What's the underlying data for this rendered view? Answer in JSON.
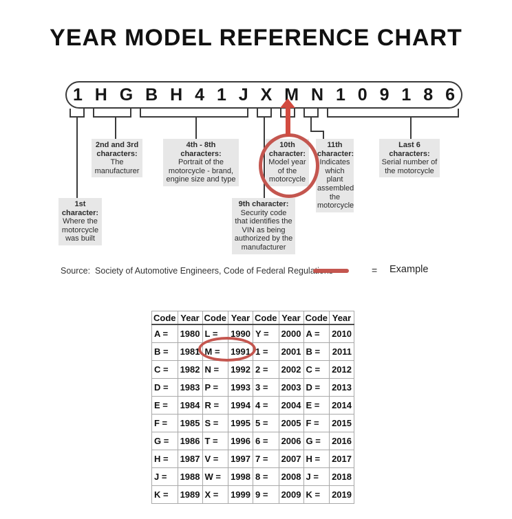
{
  "title": "YEAR MODEL REFERENCE CHART",
  "vin": {
    "characters": [
      "1",
      "H",
      "G",
      "B",
      "H",
      "4",
      "1",
      "J",
      "X",
      "M",
      "N",
      "1",
      "0",
      "9",
      "1",
      "8",
      "6"
    ]
  },
  "callouts": {
    "first": {
      "heading": "1st\ncharacter:",
      "body": "Where the\nmotorcycle\nwas built"
    },
    "second_third": {
      "heading": "2nd and 3rd\ncharacters:",
      "body": "The\nmanufacturer"
    },
    "fourth_eighth": {
      "heading": "4th - 8th\ncharacters:",
      "body": "Portrait of the\nmotorcycle - brand,\nengine size and type"
    },
    "ninth": {
      "heading": "9th character:",
      "body": "Security code\nthat identifies the\nVIN as being\nauthorized by the\nmanufacturer"
    },
    "tenth": {
      "heading": "10th\ncharacter:",
      "body": "Model year\nof the\nmotorcycle"
    },
    "eleventh": {
      "heading": "11th\ncharacter:",
      "body": "Indicates\nwhich plant\nassembled\nthe\nmotorcycle"
    },
    "last_six": {
      "heading": "Last 6\ncharacters:",
      "body": "Serial number of\nthe motorcycle"
    }
  },
  "source_line": "Source:  Society of Automotive Engineers, Code of Federal Regulations",
  "legend": {
    "equals": "=",
    "label": "Example"
  },
  "table": {
    "headers": [
      "Code",
      "Year",
      "Code",
      "Year",
      "Code",
      "Year",
      "Code",
      "Year"
    ],
    "rows": [
      [
        "A =",
        "1980",
        "L =",
        "1990",
        "Y =",
        "2000",
        "A =",
        "2010"
      ],
      [
        "B =",
        "1981",
        "M =",
        "1991",
        "1 =",
        "2001",
        "B =",
        "2011"
      ],
      [
        "C =",
        "1982",
        "N =",
        "1992",
        "2 =",
        "2002",
        "C =",
        "2012"
      ],
      [
        "D =",
        "1983",
        "P =",
        "1993",
        "3 =",
        "2003",
        "D =",
        "2013"
      ],
      [
        "E =",
        "1984",
        "R =",
        "1994",
        "4 =",
        "2004",
        "E =",
        "2014"
      ],
      [
        "F =",
        "1985",
        "S =",
        "1995",
        "5 =",
        "2005",
        "F =",
        "2015"
      ],
      [
        "G =",
        "1986",
        "T =",
        "1996",
        "6 =",
        "2006",
        "G =",
        "2016"
      ],
      [
        "H =",
        "1987",
        "V =",
        "1997",
        "7 =",
        "2007",
        "H =",
        "2017"
      ],
      [
        "J =",
        "1988",
        "W =",
        "1998",
        "8 =",
        "2008",
        "J =",
        "2018"
      ],
      [
        "K =",
        "1989",
        "X =",
        "1999",
        "9 =",
        "2009",
        "K =",
        "2019"
      ]
    ],
    "circled_cells": "M = 1991"
  },
  "colors": {
    "annotation_red": "#c4564f",
    "arrow_red": "#d24b40",
    "callout_bg": "#e7e7e7",
    "line": "#3a3a3a"
  }
}
